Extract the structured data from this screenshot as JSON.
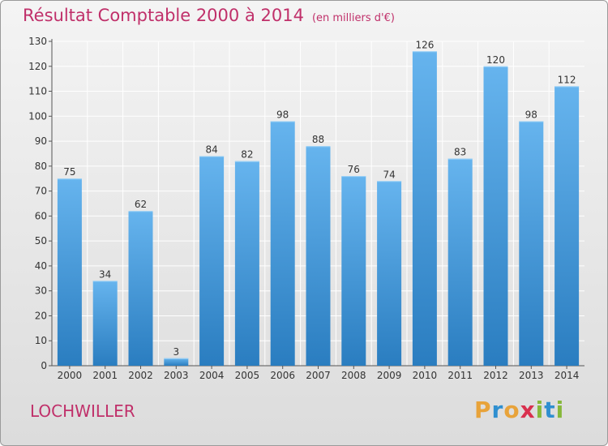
{
  "header": {
    "title": "Résultat Comptable 2000 à 2014",
    "unit": "(en milliers d'€)"
  },
  "footer": {
    "location": "LOCHWILLER",
    "logo": {
      "letters": [
        "P",
        "r",
        "o",
        "x",
        "i",
        "t",
        "i"
      ],
      "colors": [
        "#e8a33a",
        "#2f8fd0",
        "#e8a33a",
        "#d9304e",
        "#86b83a",
        "#2f8fd0",
        "#86b83a"
      ]
    }
  },
  "colors": {
    "bar_top": "#66b4ee",
    "bar_bottom": "#2a7dc0",
    "title": "#c0306a",
    "grid": "#ffffff"
  },
  "chart_data": {
    "type": "bar",
    "categories": [
      "2000",
      "2001",
      "2002",
      "2003",
      "2004",
      "2005",
      "2006",
      "2007",
      "2008",
      "2009",
      "2010",
      "2011",
      "2012",
      "2013",
      "2014"
    ],
    "values": [
      75,
      34,
      62,
      3,
      84,
      82,
      98,
      88,
      76,
      74,
      126,
      83,
      120,
      98,
      112
    ],
    "ylim": [
      0,
      130
    ],
    "yticks": [
      0,
      10,
      20,
      30,
      40,
      50,
      60,
      70,
      80,
      90,
      100,
      110,
      120,
      130
    ],
    "grid": true,
    "data_labels": true
  }
}
